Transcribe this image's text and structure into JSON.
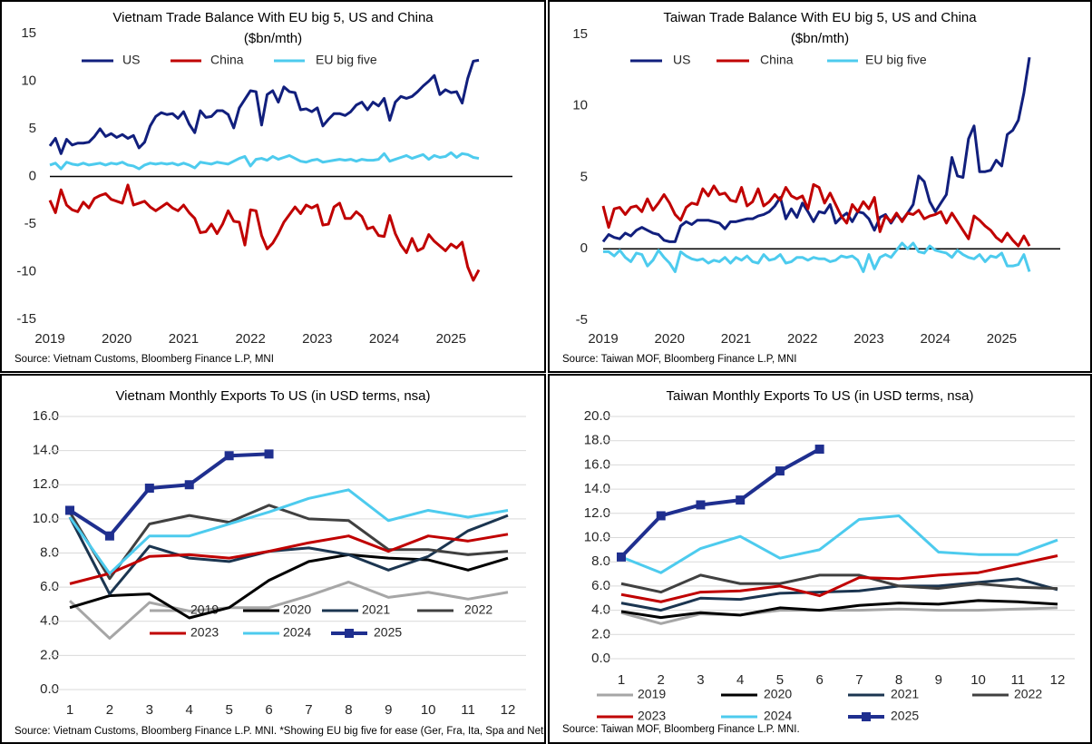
{
  "chart_data": [
    {
      "type": "line",
      "title": "Vietnam Trade Balance With EU big 5, US and China",
      "subtitle": "($bn/mth)",
      "source": "Source: Vietnam Customs, Bloomberg Finance L.P, MNI",
      "categories": [
        "2019",
        null,
        null,
        null,
        null,
        null,
        null,
        null,
        null,
        null,
        null,
        null,
        "2020",
        null,
        null,
        null,
        null,
        null,
        null,
        null,
        null,
        null,
        null,
        null,
        "2021",
        null,
        null,
        null,
        null,
        null,
        null,
        null,
        null,
        null,
        null,
        null,
        "2022",
        null,
        null,
        null,
        null,
        null,
        null,
        null,
        null,
        null,
        null,
        null,
        "2023",
        null,
        null,
        null,
        null,
        null,
        null,
        null,
        null,
        null,
        null,
        null,
        "2024",
        null,
        null,
        null,
        null,
        null,
        null,
        null,
        null,
        null,
        null,
        null,
        "2025",
        null,
        null,
        null,
        null,
        null
      ],
      "ylim": [
        -15,
        15
      ],
      "yticks": [
        -15,
        -10,
        -5,
        0,
        5,
        10,
        15
      ],
      "grid": false,
      "series": [
        {
          "name": "US",
          "color": "#111f7d",
          "values": [
            3.2,
            4.0,
            2.4,
            3.9,
            3.3,
            3.5,
            3.5,
            3.6,
            4.2,
            5.0,
            4.2,
            4.5,
            4.1,
            4.4,
            4.0,
            4.3,
            3.0,
            3.6,
            5.3,
            6.3,
            6.7,
            6.5,
            6.6,
            6.1,
            6.8,
            5.5,
            4.6,
            6.9,
            6.2,
            6.3,
            6.9,
            6.9,
            6.5,
            5.1,
            7.2,
            8.1,
            9.0,
            8.9,
            5.4,
            8.6,
            9.0,
            7.8,
            9.4,
            8.9,
            8.8,
            7.0,
            7.1,
            6.8,
            7.2,
            5.3,
            6.0,
            6.6,
            6.6,
            6.4,
            6.8,
            7.5,
            7.8,
            7.0,
            7.8,
            7.4,
            8.2,
            5.9,
            7.8,
            8.4,
            8.2,
            8.4,
            8.9,
            9.5,
            10.0,
            10.6,
            8.6,
            9.1,
            8.8,
            8.9,
            7.7,
            10.3,
            12.1,
            12.2
          ]
        },
        {
          "name": "China",
          "color": "#c00000",
          "values": [
            -2.5,
            -3.8,
            -1.4,
            -3.0,
            -3.5,
            -3.7,
            -2.7,
            -3.3,
            -2.3,
            -2.0,
            -1.8,
            -2.4,
            -2.6,
            -2.8,
            -0.9,
            -3.0,
            -2.8,
            -2.6,
            -3.2,
            -3.6,
            -3.2,
            -2.8,
            -3.3,
            -3.6,
            -3.0,
            -3.8,
            -4.4,
            -5.9,
            -5.8,
            -5.0,
            -6.0,
            -5.0,
            -3.6,
            -4.7,
            -4.8,
            -7.2,
            -3.5,
            -3.6,
            -6.2,
            -7.6,
            -7.0,
            -6.0,
            -4.8,
            -4.0,
            -3.2,
            -3.9,
            -3.0,
            -3.3,
            -3.0,
            -5.1,
            -5.0,
            -3.2,
            -2.8,
            -4.4,
            -4.4,
            -3.7,
            -4.2,
            -5.5,
            -5.3,
            -6.2,
            -6.3,
            -4.1,
            -6.0,
            -7.2,
            -8.0,
            -6.5,
            -7.8,
            -7.5,
            -6.1,
            -6.8,
            -7.3,
            -7.8,
            -7.1,
            -7.5,
            -6.9,
            -9.5,
            -10.9,
            -9.8
          ]
        },
        {
          "name": "EU big five",
          "color": "#4dcbee",
          "values": [
            1.2,
            1.4,
            0.8,
            1.5,
            1.3,
            1.2,
            1.4,
            1.2,
            1.3,
            1.4,
            1.2,
            1.4,
            1.3,
            1.5,
            1.2,
            1.1,
            0.8,
            1.2,
            1.4,
            1.3,
            1.4,
            1.3,
            1.4,
            1.2,
            1.4,
            1.2,
            0.9,
            1.5,
            1.4,
            1.3,
            1.5,
            1.4,
            1.3,
            1.6,
            1.9,
            2.1,
            1.1,
            1.8,
            1.9,
            1.7,
            2.1,
            1.8,
            2.0,
            2.2,
            1.9,
            1.6,
            1.5,
            1.7,
            1.8,
            1.5,
            1.6,
            1.7,
            1.8,
            1.7,
            1.8,
            1.6,
            1.8,
            1.7,
            1.7,
            1.8,
            2.4,
            1.6,
            1.8,
            2.0,
            2.2,
            1.9,
            2.1,
            2.3,
            1.8,
            2.2,
            2.0,
            2.1,
            2.5,
            2.0,
            2.4,
            2.3,
            2.0,
            1.9
          ]
        }
      ]
    },
    {
      "type": "line",
      "title": "Taiwan Trade Balance With EU big 5, US and China",
      "subtitle": "($bn/mth)",
      "source": "Source: Taiwan MOF, Bloomberg Finance L.P, MNI",
      "categories": [
        "2019",
        null,
        null,
        null,
        null,
        null,
        null,
        null,
        null,
        null,
        null,
        null,
        "2020",
        null,
        null,
        null,
        null,
        null,
        null,
        null,
        null,
        null,
        null,
        null,
        "2021",
        null,
        null,
        null,
        null,
        null,
        null,
        null,
        null,
        null,
        null,
        null,
        "2022",
        null,
        null,
        null,
        null,
        null,
        null,
        null,
        null,
        null,
        null,
        null,
        "2023",
        null,
        null,
        null,
        null,
        null,
        null,
        null,
        null,
        null,
        null,
        null,
        "2024",
        null,
        null,
        null,
        null,
        null,
        null,
        null,
        null,
        null,
        null,
        null,
        "2025",
        null,
        null,
        null,
        null,
        null
      ],
      "ylim": [
        -5,
        15
      ],
      "yticks": [
        -5,
        0,
        5,
        10,
        15
      ],
      "grid": false,
      "series": [
        {
          "name": "US",
          "color": "#111f7d",
          "values": [
            0.5,
            1.0,
            0.8,
            0.7,
            1.1,
            0.9,
            1.3,
            1.5,
            1.3,
            1.1,
            1.0,
            0.6,
            0.5,
            0.5,
            1.6,
            1.9,
            1.7,
            2.0,
            2.0,
            2.0,
            1.9,
            1.8,
            1.4,
            1.9,
            1.9,
            2.0,
            2.1,
            2.1,
            2.3,
            2.4,
            2.6,
            3.0,
            3.6,
            2.1,
            2.8,
            2.2,
            3.2,
            2.6,
            1.9,
            2.6,
            2.5,
            3.1,
            1.8,
            2.2,
            2.5,
            1.9,
            2.6,
            2.5,
            2.1,
            1.3,
            2.2,
            2.4,
            1.8,
            2.4,
            2.0,
            2.5,
            3.1,
            5.1,
            4.7,
            3.3,
            2.6,
            3.2,
            3.8,
            6.4,
            5.1,
            5.0,
            7.7,
            8.6,
            5.4,
            5.4,
            5.5,
            6.2,
            5.8,
            8.0,
            8.3,
            9.0,
            10.9,
            13.4
          ]
        },
        {
          "name": "China",
          "color": "#c00000",
          "values": [
            3.0,
            1.5,
            2.8,
            2.9,
            2.4,
            2.9,
            3.0,
            2.6,
            3.5,
            2.7,
            3.2,
            3.8,
            3.2,
            2.4,
            2.0,
            2.9,
            3.2,
            3.1,
            4.2,
            3.7,
            4.4,
            3.8,
            3.9,
            3.4,
            3.3,
            4.3,
            3.0,
            3.3,
            4.2,
            3.0,
            3.3,
            3.8,
            3.4,
            4.3,
            3.7,
            3.5,
            3.7,
            2.8,
            4.5,
            4.3,
            3.2,
            3.9,
            3.1,
            2.3,
            1.8,
            3.1,
            2.6,
            3.3,
            2.8,
            3.6,
            1.2,
            2.3,
            1.9,
            2.5,
            1.9,
            2.5,
            2.4,
            2.7,
            2.1,
            2.3,
            2.4,
            2.6,
            1.8,
            2.5,
            1.9,
            1.3,
            0.7,
            2.3,
            2.0,
            1.6,
            1.3,
            0.8,
            0.5,
            1.1,
            0.6,
            0.2,
            0.9,
            0.2
          ]
        },
        {
          "name": "EU big five",
          "color": "#4dcbee",
          "values": [
            -0.2,
            -0.2,
            -0.5,
            -0.1,
            -0.6,
            -0.9,
            -0.3,
            -0.4,
            -1.2,
            -0.8,
            -0.1,
            -0.6,
            -1.0,
            -1.6,
            -0.2,
            -0.5,
            -0.7,
            -0.8,
            -0.7,
            -1.0,
            -0.8,
            -0.9,
            -0.6,
            -1.0,
            -0.6,
            -0.8,
            -0.5,
            -0.9,
            -1.0,
            -0.4,
            -0.8,
            -0.7,
            -0.4,
            -1.0,
            -0.9,
            -0.6,
            -0.6,
            -0.8,
            -0.6,
            -0.7,
            -0.7,
            -0.9,
            -0.8,
            -0.5,
            -0.6,
            -0.5,
            -0.8,
            -1.6,
            -0.4,
            -1.4,
            -0.6,
            -0.4,
            -0.6,
            -0.1,
            0.4,
            0.0,
            0.4,
            -0.2,
            -0.3,
            0.2,
            -0.1,
            -0.2,
            -0.3,
            -0.6,
            -0.1,
            -0.4,
            -0.6,
            -0.7,
            -0.4,
            -0.9,
            -0.5,
            -0.6,
            -0.3,
            -1.2,
            -1.2,
            -1.1,
            -0.4,
            -1.6
          ]
        }
      ]
    },
    {
      "type": "line",
      "title": "Vietnam Monthly Exports To US (in USD terms, nsa)",
      "source": "Source: Vietnam Customs, Bloomberg Finance L.P. MNI. *Showing EU big five for ease (Ger, Fra, Ita, Spa and Neth)",
      "categories": [
        "1",
        "2",
        "3",
        "4",
        "5",
        "6",
        "7",
        "8",
        "9",
        "10",
        "11",
        "12"
      ],
      "ylim": [
        0,
        16
      ],
      "yticks": [
        {
          "value": 0,
          "label": "0.0"
        },
        {
          "value": 2,
          "label": "2.0"
        },
        {
          "value": 4,
          "label": "4.0"
        },
        {
          "value": 6,
          "label": "6.0"
        },
        {
          "value": 8,
          "label": "8.0"
        },
        {
          "value": 10,
          "label": "10.0"
        },
        {
          "value": 12,
          "label": "12.0"
        },
        {
          "value": 14,
          "label": "14.0"
        },
        {
          "value": 16,
          "label": "16.0"
        }
      ],
      "grid": true,
      "series": [
        {
          "name": "2019",
          "color": "#a6a6a6",
          "values": [
            5.2,
            3.0,
            5.1,
            4.6,
            4.8,
            4.8,
            5.5,
            6.3,
            5.4,
            5.7,
            5.3,
            5.7
          ]
        },
        {
          "name": "2020",
          "color": "#000000",
          "values": [
            4.8,
            5.5,
            5.6,
            4.2,
            4.8,
            6.4,
            7.5,
            7.9,
            7.7,
            7.6,
            7.0,
            7.7
          ]
        },
        {
          "name": "2021",
          "color": "#1b3550",
          "values": [
            10.1,
            5.6,
            8.4,
            7.7,
            7.5,
            8.1,
            8.3,
            7.9,
            7.0,
            7.8,
            9.3,
            10.2
          ]
        },
        {
          "name": "2022",
          "color": "#404040",
          "values": [
            10.4,
            6.5,
            9.7,
            10.2,
            9.8,
            10.8,
            10.0,
            9.9,
            8.2,
            8.2,
            7.9,
            8.1
          ]
        },
        {
          "name": "2023",
          "color": "#c00000",
          "values": [
            6.2,
            6.8,
            7.8,
            7.9,
            7.7,
            8.1,
            8.6,
            9.0,
            8.1,
            9.0,
            8.7,
            9.1
          ]
        },
        {
          "name": "2024",
          "color": "#4dcbee",
          "values": [
            10.1,
            6.8,
            9.0,
            9.0,
            9.7,
            10.4,
            11.2,
            11.7,
            9.9,
            10.5,
            10.1,
            10.5
          ]
        },
        {
          "name": "2025",
          "color": "#1f2f8f",
          "marker": "square",
          "values": [
            10.5,
            9.0,
            11.8,
            12.0,
            13.7,
            13.8,
            null,
            null,
            null,
            null,
            null,
            null
          ]
        }
      ]
    },
    {
      "type": "line",
      "title": "Taiwan Monthly Exports To US (in USD terms, nsa)",
      "source": "Source: Taiwan MOF, Bloomberg Finance L.P. MNI.",
      "categories": [
        "1",
        "2",
        "3",
        "4",
        "5",
        "6",
        "7",
        "8",
        "9",
        "10",
        "11",
        "12"
      ],
      "ylim": [
        0,
        20
      ],
      "yticks": [
        {
          "value": 0,
          "label": "0.0"
        },
        {
          "value": 2,
          "label": "2.0"
        },
        {
          "value": 4,
          "label": "4.0"
        },
        {
          "value": 6,
          "label": "6.0"
        },
        {
          "value": 8,
          "label": "8.0"
        },
        {
          "value": 10,
          "label": "10.0"
        },
        {
          "value": 12,
          "label": "12.0"
        },
        {
          "value": 14,
          "label": "14.0"
        },
        {
          "value": 16,
          "label": "16.0"
        },
        {
          "value": 18,
          "label": "18.0"
        },
        {
          "value": 20,
          "label": "20.0"
        }
      ],
      "grid": true,
      "series": [
        {
          "name": "2019",
          "color": "#a6a6a6",
          "values": [
            3.8,
            2.9,
            3.7,
            3.6,
            4.0,
            4.0,
            4.0,
            4.1,
            4.0,
            4.0,
            4.1,
            4.2
          ]
        },
        {
          "name": "2020",
          "color": "#000000",
          "values": [
            3.9,
            3.4,
            3.8,
            3.6,
            4.2,
            4.0,
            4.4,
            4.6,
            4.5,
            4.8,
            4.7,
            4.5
          ]
        },
        {
          "name": "2021",
          "color": "#1b3550",
          "values": [
            4.6,
            4.0,
            5.0,
            4.9,
            5.4,
            5.5,
            5.6,
            6.0,
            6.0,
            6.3,
            6.6,
            5.7
          ]
        },
        {
          "name": "2022",
          "color": "#404040",
          "values": [
            6.2,
            5.5,
            6.9,
            6.2,
            6.2,
            6.9,
            6.9,
            6.0,
            5.8,
            6.2,
            5.9,
            5.8
          ]
        },
        {
          "name": "2023",
          "color": "#c00000",
          "values": [
            5.3,
            4.7,
            5.5,
            5.6,
            6.0,
            5.2,
            6.7,
            6.6,
            6.9,
            7.1,
            7.8,
            8.5
          ]
        },
        {
          "name": "2024",
          "color": "#4dcbee",
          "values": [
            8.4,
            7.1,
            9.1,
            10.1,
            8.3,
            9.0,
            11.5,
            11.8,
            8.8,
            8.6,
            8.6,
            9.8
          ]
        },
        {
          "name": "2025",
          "color": "#1f2f8f",
          "marker": "square",
          "values": [
            8.4,
            11.8,
            12.7,
            13.1,
            15.5,
            17.3,
            null,
            null,
            null,
            null,
            null,
            null
          ]
        }
      ]
    }
  ]
}
